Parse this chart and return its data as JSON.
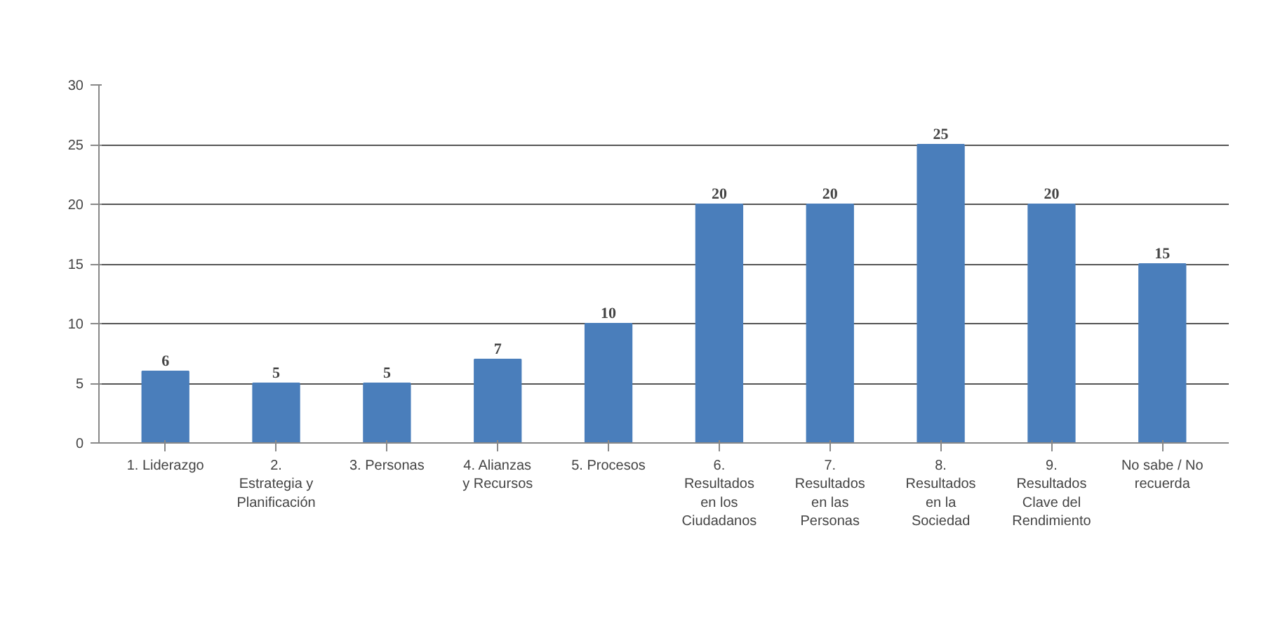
{
  "chart_data": {
    "type": "bar",
    "categories": [
      "1. Liderazgo",
      "2. Estrategia y Planificación",
      "3. Personas",
      "4. Alianzas y Recursos",
      "5. Procesos",
      "6. Resultados en los Ciudadanos",
      "7. Resultados en las Personas",
      "8. Resultados en la Sociedad",
      "9. Resultados Clave del Rendimiento",
      "No sabe / No recuerda"
    ],
    "values": [
      6,
      5,
      5,
      7,
      10,
      20,
      20,
      25,
      20,
      15
    ],
    "color": "#4a7ebb",
    "ylim": [
      0,
      30
    ],
    "yticks": [
      0,
      5,
      10,
      15,
      20,
      25,
      30
    ],
    "grid": "y",
    "data_labels": true
  }
}
